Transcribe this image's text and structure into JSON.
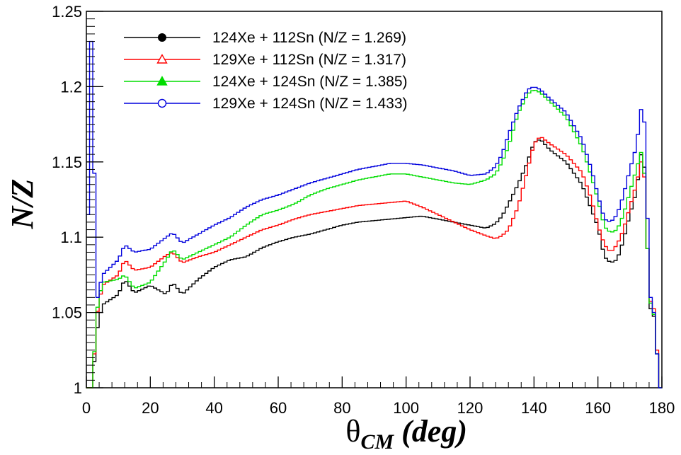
{
  "chart_data": {
    "type": "line",
    "style": "step-histogram",
    "ylabel": "N/Z",
    "xlabel": {
      "theta": "θ",
      "sub": "CM",
      "unit": " (deg)"
    },
    "xlim": [
      0,
      180
    ],
    "ylim": [
      1.0,
      1.25
    ],
    "xticks": [
      0,
      20,
      40,
      60,
      80,
      100,
      120,
      140,
      160,
      180
    ],
    "yticks": [
      1,
      1.05,
      1.1,
      1.15,
      1.2,
      1.25
    ],
    "ytick_labels": [
      "1",
      "1.05",
      "1.1",
      "1.15",
      "1.2",
      "1.25"
    ],
    "grid": false,
    "legend_position": "top-left",
    "series": [
      {
        "name": "124Xe + 112Sn (N/Z = 1.269)",
        "color": "#000000",
        "marker": "filled-circle",
        "points": [
          [
            0,
            1.0
          ],
          [
            2,
            1.0
          ],
          [
            3,
            1.035
          ],
          [
            5,
            1.055
          ],
          [
            10,
            1.062
          ],
          [
            12,
            1.072
          ],
          [
            15,
            1.063
          ],
          [
            18,
            1.066
          ],
          [
            20,
            1.068
          ],
          [
            25,
            1.062
          ],
          [
            27,
            1.07
          ],
          [
            30,
            1.062
          ],
          [
            35,
            1.072
          ],
          [
            40,
            1.08
          ],
          [
            45,
            1.085
          ],
          [
            50,
            1.087
          ],
          [
            55,
            1.093
          ],
          [
            60,
            1.097
          ],
          [
            65,
            1.1
          ],
          [
            70,
            1.102
          ],
          [
            75,
            1.105
          ],
          [
            80,
            1.108
          ],
          [
            85,
            1.11
          ],
          [
            90,
            1.111
          ],
          [
            95,
            1.112
          ],
          [
            100,
            1.113
          ],
          [
            105,
            1.114
          ],
          [
            110,
            1.112
          ],
          [
            115,
            1.11
          ],
          [
            120,
            1.108
          ],
          [
            125,
            1.106
          ],
          [
            128,
            1.109
          ],
          [
            130,
            1.114
          ],
          [
            132,
            1.122
          ],
          [
            135,
            1.135
          ],
          [
            138,
            1.15
          ],
          [
            140,
            1.163
          ],
          [
            142,
            1.165
          ],
          [
            145,
            1.158
          ],
          [
            150,
            1.15
          ],
          [
            155,
            1.135
          ],
          [
            160,
            1.107
          ],
          [
            162,
            1.087
          ],
          [
            164,
            1.083
          ],
          [
            166,
            1.085
          ],
          [
            168,
            1.098
          ],
          [
            170,
            1.115
          ],
          [
            172,
            1.13
          ],
          [
            174,
            1.163
          ],
          [
            175,
            1.13
          ],
          [
            176,
            1.055
          ],
          [
            178,
            1.045
          ],
          [
            179,
            1.0
          ]
        ]
      },
      {
        "name": "129Xe + 112Sn (N/Z = 1.317)",
        "color": "#ff0000",
        "marker": "open-triangle",
        "points": [
          [
            0,
            1.0
          ],
          [
            2,
            1.0
          ],
          [
            3,
            1.045
          ],
          [
            5,
            1.068
          ],
          [
            10,
            1.075
          ],
          [
            12,
            1.085
          ],
          [
            15,
            1.078
          ],
          [
            20,
            1.08
          ],
          [
            25,
            1.088
          ],
          [
            27,
            1.09
          ],
          [
            30,
            1.083
          ],
          [
            35,
            1.087
          ],
          [
            40,
            1.09
          ],
          [
            45,
            1.095
          ],
          [
            50,
            1.1
          ],
          [
            55,
            1.105
          ],
          [
            60,
            1.108
          ],
          [
            65,
            1.112
          ],
          [
            70,
            1.115
          ],
          [
            75,
            1.117
          ],
          [
            80,
            1.119
          ],
          [
            85,
            1.121
          ],
          [
            90,
            1.122
          ],
          [
            95,
            1.123
          ],
          [
            100,
            1.124
          ],
          [
            105,
            1.12
          ],
          [
            110,
            1.115
          ],
          [
            115,
            1.11
          ],
          [
            120,
            1.105
          ],
          [
            125,
            1.101
          ],
          [
            128,
            1.099
          ],
          [
            130,
            1.101
          ],
          [
            132,
            1.105
          ],
          [
            135,
            1.12
          ],
          [
            138,
            1.145
          ],
          [
            140,
            1.162
          ],
          [
            142,
            1.167
          ],
          [
            145,
            1.162
          ],
          [
            150,
            1.155
          ],
          [
            155,
            1.143
          ],
          [
            158,
            1.125
          ],
          [
            160,
            1.108
          ],
          [
            162,
            1.095
          ],
          [
            164,
            1.09
          ],
          [
            166,
            1.095
          ],
          [
            168,
            1.105
          ],
          [
            170,
            1.12
          ],
          [
            172,
            1.135
          ],
          [
            174,
            1.155
          ],
          [
            175,
            1.125
          ],
          [
            176,
            1.06
          ],
          [
            178,
            1.05
          ],
          [
            179,
            1.0
          ]
        ]
      },
      {
        "name": "124Xe + 124Sn (N/Z = 1.385)",
        "color": "#00dd00",
        "marker": "filled-triangle",
        "points": [
          [
            0,
            1.0
          ],
          [
            2,
            1.0
          ],
          [
            3,
            1.048
          ],
          [
            5,
            1.07
          ],
          [
            10,
            1.072
          ],
          [
            12,
            1.075
          ],
          [
            15,
            1.066
          ],
          [
            20,
            1.07
          ],
          [
            25,
            1.085
          ],
          [
            27,
            1.092
          ],
          [
            30,
            1.085
          ],
          [
            35,
            1.09
          ],
          [
            40,
            1.095
          ],
          [
            45,
            1.1
          ],
          [
            50,
            1.108
          ],
          [
            55,
            1.115
          ],
          [
            60,
            1.118
          ],
          [
            65,
            1.122
          ],
          [
            70,
            1.128
          ],
          [
            75,
            1.132
          ],
          [
            80,
            1.135
          ],
          [
            85,
            1.138
          ],
          [
            90,
            1.14
          ],
          [
            95,
            1.142
          ],
          [
            100,
            1.142
          ],
          [
            105,
            1.14
          ],
          [
            110,
            1.138
          ],
          [
            115,
            1.136
          ],
          [
            120,
            1.135
          ],
          [
            125,
            1.138
          ],
          [
            128,
            1.142
          ],
          [
            130,
            1.15
          ],
          [
            132,
            1.16
          ],
          [
            135,
            1.182
          ],
          [
            138,
            1.195
          ],
          [
            140,
            1.198
          ],
          [
            142,
            1.196
          ],
          [
            145,
            1.19
          ],
          [
            150,
            1.18
          ],
          [
            155,
            1.16
          ],
          [
            158,
            1.14
          ],
          [
            160,
            1.125
          ],
          [
            162,
            1.107
          ],
          [
            164,
            1.103
          ],
          [
            166,
            1.105
          ],
          [
            168,
            1.115
          ],
          [
            170,
            1.13
          ],
          [
            172,
            1.145
          ],
          [
            174,
            1.16
          ],
          [
            175,
            1.125
          ],
          [
            176,
            1.06
          ],
          [
            178,
            1.045
          ],
          [
            179,
            1.0
          ]
        ]
      },
      {
        "name": "129Xe + 124Sn (N/Z = 1.433)",
        "color": "#0000dd",
        "marker": "open-circle",
        "points": [
          [
            0,
            1.0
          ],
          [
            1,
            1.23
          ],
          [
            2,
            1.23
          ],
          [
            3,
            1.055
          ],
          [
            5,
            1.075
          ],
          [
            10,
            1.085
          ],
          [
            12,
            1.095
          ],
          [
            15,
            1.09
          ],
          [
            20,
            1.092
          ],
          [
            25,
            1.1
          ],
          [
            27,
            1.103
          ],
          [
            30,
            1.096
          ],
          [
            35,
            1.102
          ],
          [
            40,
            1.108
          ],
          [
            45,
            1.113
          ],
          [
            50,
            1.12
          ],
          [
            55,
            1.125
          ],
          [
            60,
            1.128
          ],
          [
            65,
            1.132
          ],
          [
            70,
            1.136
          ],
          [
            75,
            1.139
          ],
          [
            80,
            1.142
          ],
          [
            85,
            1.145
          ],
          [
            90,
            1.147
          ],
          [
            95,
            1.149
          ],
          [
            100,
            1.149
          ],
          [
            105,
            1.148
          ],
          [
            110,
            1.146
          ],
          [
            115,
            1.144
          ],
          [
            120,
            1.141
          ],
          [
            125,
            1.142
          ],
          [
            128,
            1.147
          ],
          [
            130,
            1.155
          ],
          [
            132,
            1.168
          ],
          [
            135,
            1.185
          ],
          [
            138,
            1.198
          ],
          [
            140,
            1.2
          ],
          [
            142,
            1.198
          ],
          [
            145,
            1.192
          ],
          [
            150,
            1.183
          ],
          [
            155,
            1.165
          ],
          [
            158,
            1.145
          ],
          [
            160,
            1.128
          ],
          [
            162,
            1.112
          ],
          [
            164,
            1.11
          ],
          [
            166,
            1.115
          ],
          [
            168,
            1.128
          ],
          [
            170,
            1.145
          ],
          [
            172,
            1.16
          ],
          [
            174,
            1.193
          ],
          [
            175,
            1.16
          ],
          [
            176,
            1.065
          ],
          [
            178,
            1.045
          ],
          [
            179,
            1.0
          ]
        ]
      }
    ]
  }
}
